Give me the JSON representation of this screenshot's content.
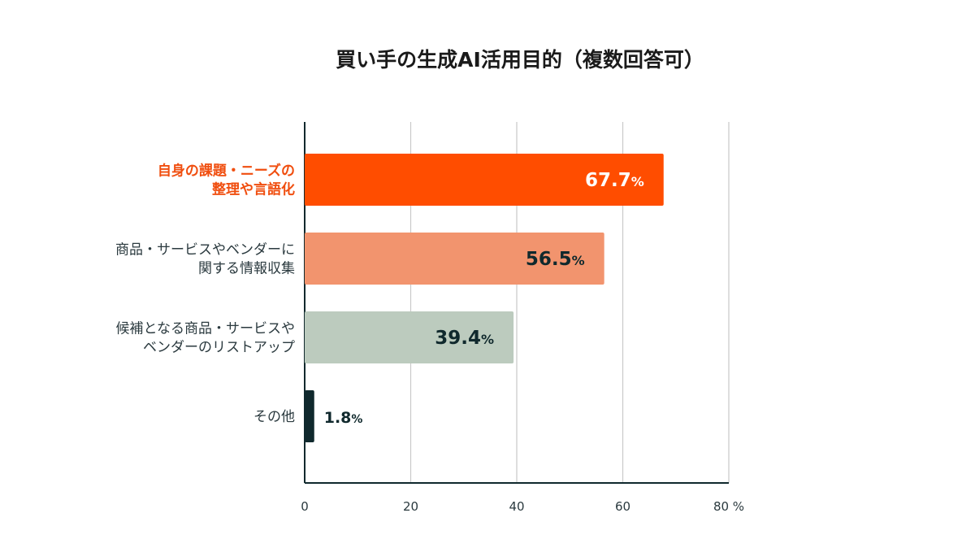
{
  "chart_data": {
    "type": "bar",
    "orientation": "horizontal",
    "title": "買い手の生成AI活用目的（複数回答可）",
    "categories": [
      [
        "自身の課題・ニーズの",
        "整理や言語化"
      ],
      [
        "商品・サービスやベンダーに",
        "関する情報収集"
      ],
      [
        "候補となる商品・サービスや",
        "ベンダーのリストアップ"
      ],
      [
        "その他"
      ]
    ],
    "values": [
      67.7,
      56.5,
      39.4,
      1.8
    ],
    "value_labels": [
      "67.7",
      "56.5",
      "39.4",
      "1.8"
    ],
    "value_unit": "%",
    "highlight_index": 0,
    "bar_colors": [
      "#ff4d00",
      "#f2946e",
      "#bccbbe",
      "#10292d"
    ],
    "value_label_colors": [
      "#ffffff",
      "#10292d",
      "#10292d",
      "#10292d"
    ],
    "highlight_label_color": "#f04e0f",
    "xlim": [
      0,
      80
    ],
    "xticks": [
      0,
      20,
      40,
      60,
      80
    ],
    "xtick_labels": [
      "0",
      "20",
      "40",
      "60",
      "80 %"
    ],
    "grid": true,
    "xlabel": "",
    "ylabel": ""
  }
}
